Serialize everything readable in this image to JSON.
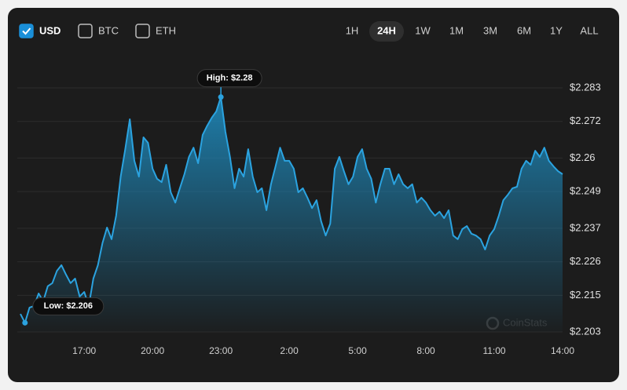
{
  "controls": {
    "currencies": [
      {
        "label": "USD",
        "checked": true
      },
      {
        "label": "BTC",
        "checked": false
      },
      {
        "label": "ETH",
        "checked": false
      }
    ],
    "ranges": [
      "1H",
      "24H",
      "1W",
      "1M",
      "3M",
      "6M",
      "1Y",
      "ALL"
    ],
    "active_range": "24H"
  },
  "chart_data": {
    "type": "area",
    "color": "#2ba3e0",
    "grid": true,
    "watermark": "CoinStats",
    "xlim": [
      14.2,
      38.0
    ],
    "xticks": [
      {
        "value": 17,
        "label": "17:00"
      },
      {
        "value": 20,
        "label": "20:00"
      },
      {
        "value": 23,
        "label": "23:00"
      },
      {
        "value": 26,
        "label": "2:00"
      },
      {
        "value": 29,
        "label": "5:00"
      },
      {
        "value": 32,
        "label": "8:00"
      },
      {
        "value": 35,
        "label": "11:00"
      },
      {
        "value": 38,
        "label": "14:00"
      }
    ],
    "ylim": [
      2.203,
      2.283
    ],
    "yticks": [
      {
        "value": 2.203,
        "label": "$2.203"
      },
      {
        "value": 2.215,
        "label": "$2.215"
      },
      {
        "value": 2.226,
        "label": "$2.226"
      },
      {
        "value": 2.237,
        "label": "$2.237"
      },
      {
        "value": 2.249,
        "label": "$2.249"
      },
      {
        "value": 2.26,
        "label": "$2.26"
      },
      {
        "value": 2.272,
        "label": "$2.272"
      },
      {
        "value": 2.283,
        "label": "$2.283"
      }
    ],
    "annotations": [
      {
        "text": "High: $2.28",
        "x": 23.0,
        "y": 2.28
      },
      {
        "text": "Low: $2.206",
        "x": 14.4,
        "y": 2.206
      }
    ],
    "x": [
      14.2,
      14.4,
      14.6,
      14.8,
      15.0,
      15.2,
      15.4,
      15.6,
      15.8,
      16.0,
      16.2,
      16.4,
      16.6,
      16.8,
      17.0,
      17.2,
      17.4,
      17.6,
      17.8,
      18.0,
      18.2,
      18.4,
      18.6,
      18.8,
      19.0,
      19.2,
      19.4,
      19.6,
      19.8,
      20.0,
      20.2,
      20.4,
      20.6,
      20.8,
      21.0,
      21.2,
      21.4,
      21.6,
      21.8,
      22.0,
      22.2,
      22.4,
      22.6,
      22.8,
      23.0,
      23.2,
      23.4,
      23.6,
      23.8,
      24.0,
      24.2,
      24.4,
      24.6,
      24.8,
      25.0,
      25.2,
      25.4,
      25.6,
      25.8,
      26.0,
      26.2,
      26.4,
      26.6,
      26.8,
      27.0,
      27.2,
      27.4,
      27.6,
      27.8,
      28.0,
      28.2,
      28.4,
      28.6,
      28.8,
      29.0,
      29.2,
      29.4,
      29.6,
      29.8,
      30.0,
      30.2,
      30.4,
      30.6,
      30.8,
      31.0,
      31.2,
      31.4,
      31.6,
      31.8,
      32.0,
      32.2,
      32.4,
      32.6,
      32.8,
      33.0,
      33.2,
      33.4,
      33.6,
      33.8,
      34.0,
      34.2,
      34.4,
      34.6,
      34.8,
      35.0,
      35.2,
      35.4,
      35.6,
      35.8,
      36.0,
      36.2,
      36.4,
      36.6,
      36.8,
      37.0,
      37.2,
      37.4,
      37.6,
      37.8,
      38.0
    ],
    "values": [
      2.2089,
      2.206,
      2.211,
      2.2115,
      2.2156,
      2.213,
      2.218,
      2.219,
      2.223,
      2.2249,
      2.2218,
      2.219,
      2.2205,
      2.2146,
      2.2161,
      2.2115,
      2.2205,
      2.2249,
      2.2321,
      2.2372,
      2.2334,
      2.2411,
      2.2539,
      2.2629,
      2.2727,
      2.2591,
      2.2539,
      2.2668,
      2.265,
      2.2565,
      2.2532,
      2.2521,
      2.2578,
      2.2488,
      2.2454,
      2.2501,
      2.2547,
      2.2604,
      2.2634,
      2.2583,
      2.2676,
      2.2706,
      2.2732,
      2.2753,
      2.28,
      2.2686,
      2.2604,
      2.2501,
      2.2565,
      2.2539,
      2.2629,
      2.2539,
      2.2488,
      2.2501,
      2.2429,
      2.2514,
      2.2573,
      2.2634,
      2.2591,
      2.2591,
      2.2565,
      2.2488,
      2.2501,
      2.247,
      2.2436,
      2.2462,
      2.2393,
      2.2346,
      2.2385,
      2.2565,
      2.2604,
      2.2557,
      2.2514,
      2.2539,
      2.2604,
      2.2629,
      2.2565,
      2.2532,
      2.2454,
      2.2514,
      2.2565,
      2.2565,
      2.2514,
      2.2547,
      2.2514,
      2.2501,
      2.2514,
      2.2454,
      2.247,
      2.2454,
      2.2429,
      2.2411,
      2.2424,
      2.2403,
      2.2429,
      2.2346,
      2.2334,
      2.2367,
      2.2377,
      2.2352,
      2.2346,
      2.2334,
      2.23,
      2.2346,
      2.2367,
      2.2411,
      2.2462,
      2.248,
      2.2501,
      2.2506,
      2.2565,
      2.2591,
      2.2578,
      2.2624,
      2.2604,
      2.2634,
      2.2591,
      2.2573,
      2.2557,
      2.2547
    ]
  }
}
